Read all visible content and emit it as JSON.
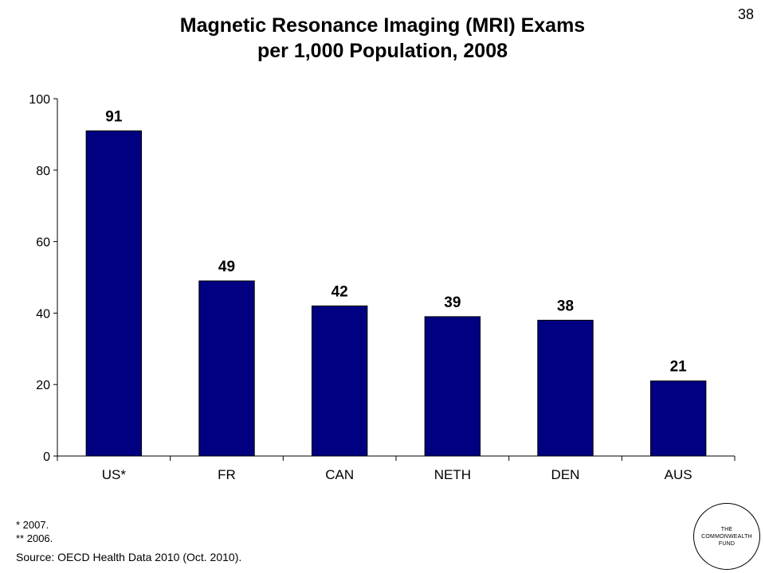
{
  "slide": {
    "number": "38"
  },
  "title_line1": "Magnetic Resonance Imaging (MRI) Exams",
  "title_line2": "per 1,000 Population, 2008",
  "footnotes": [
    "* 2007.",
    "** 2006."
  ],
  "source": "Source: OECD Health Data 2010 (Oct. 2010).",
  "logo": {
    "lines": [
      "THE",
      "COMMONWEALTH",
      "FUND"
    ]
  },
  "colors": {
    "bar": "#000080",
    "axis": "#000000"
  },
  "chart_data": {
    "type": "bar",
    "title": "Magnetic Resonance Imaging (MRI) Exams per 1,000 Population, 2008",
    "categories": [
      "US*",
      "FR",
      "CAN",
      "NETH",
      "DEN",
      "AUS"
    ],
    "values": [
      91,
      49,
      42,
      39,
      38,
      21
    ],
    "data_labels": [
      "91",
      "49",
      "42",
      "39",
      "38",
      "21"
    ],
    "xlabel": "",
    "ylabel": "",
    "ylim": [
      0,
      100
    ],
    "yticks": [
      0,
      20,
      40,
      60,
      80,
      100
    ],
    "grid": false,
    "legend": "none"
  }
}
